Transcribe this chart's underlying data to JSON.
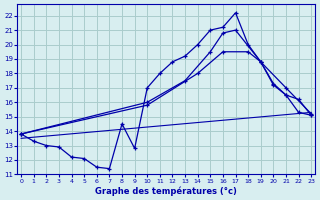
{
  "title": "Graphe des températures (°c)",
  "bg_color": "#d8eef0",
  "grid_color": "#aacccc",
  "line_color": "#0000aa",
  "x_ticks": [
    0,
    1,
    2,
    3,
    4,
    5,
    6,
    7,
    8,
    9,
    10,
    11,
    12,
    13,
    14,
    15,
    16,
    17,
    18,
    19,
    20,
    21,
    22,
    23
  ],
  "y_ticks": [
    11,
    12,
    13,
    14,
    15,
    16,
    17,
    18,
    19,
    20,
    21,
    22
  ],
  "xlim": [
    -0.3,
    23.3
  ],
  "ylim": [
    11.0,
    22.8
  ],
  "curve1_x": [
    0,
    1,
    2,
    3,
    4,
    5,
    6,
    7,
    8,
    9,
    10,
    11,
    12,
    13,
    14,
    15,
    16,
    17,
    18,
    19,
    20,
    21,
    22,
    23
  ],
  "curve1_y": [
    13.8,
    13.3,
    13.0,
    12.9,
    12.2,
    12.1,
    11.5,
    11.4,
    14.5,
    12.8,
    17.0,
    18.0,
    18.8,
    19.2,
    20.0,
    21.0,
    21.2,
    22.2,
    20.0,
    18.8,
    17.3,
    16.5,
    15.3,
    15.1
  ],
  "curve2_x": [
    0,
    10,
    13,
    15,
    16,
    17,
    19,
    20,
    21,
    22,
    23
  ],
  "curve2_y": [
    13.8,
    16.0,
    17.5,
    19.5,
    20.8,
    21.0,
    18.8,
    17.2,
    16.5,
    16.2,
    15.1
  ],
  "curve3_x": [
    0,
    10,
    14,
    16,
    18,
    19,
    21,
    23
  ],
  "curve3_y": [
    13.8,
    15.8,
    18.0,
    19.5,
    19.5,
    18.8,
    17.0,
    15.2
  ],
  "curve4_x": [
    0,
    23
  ],
  "curve4_y": [
    13.5,
    15.3
  ]
}
